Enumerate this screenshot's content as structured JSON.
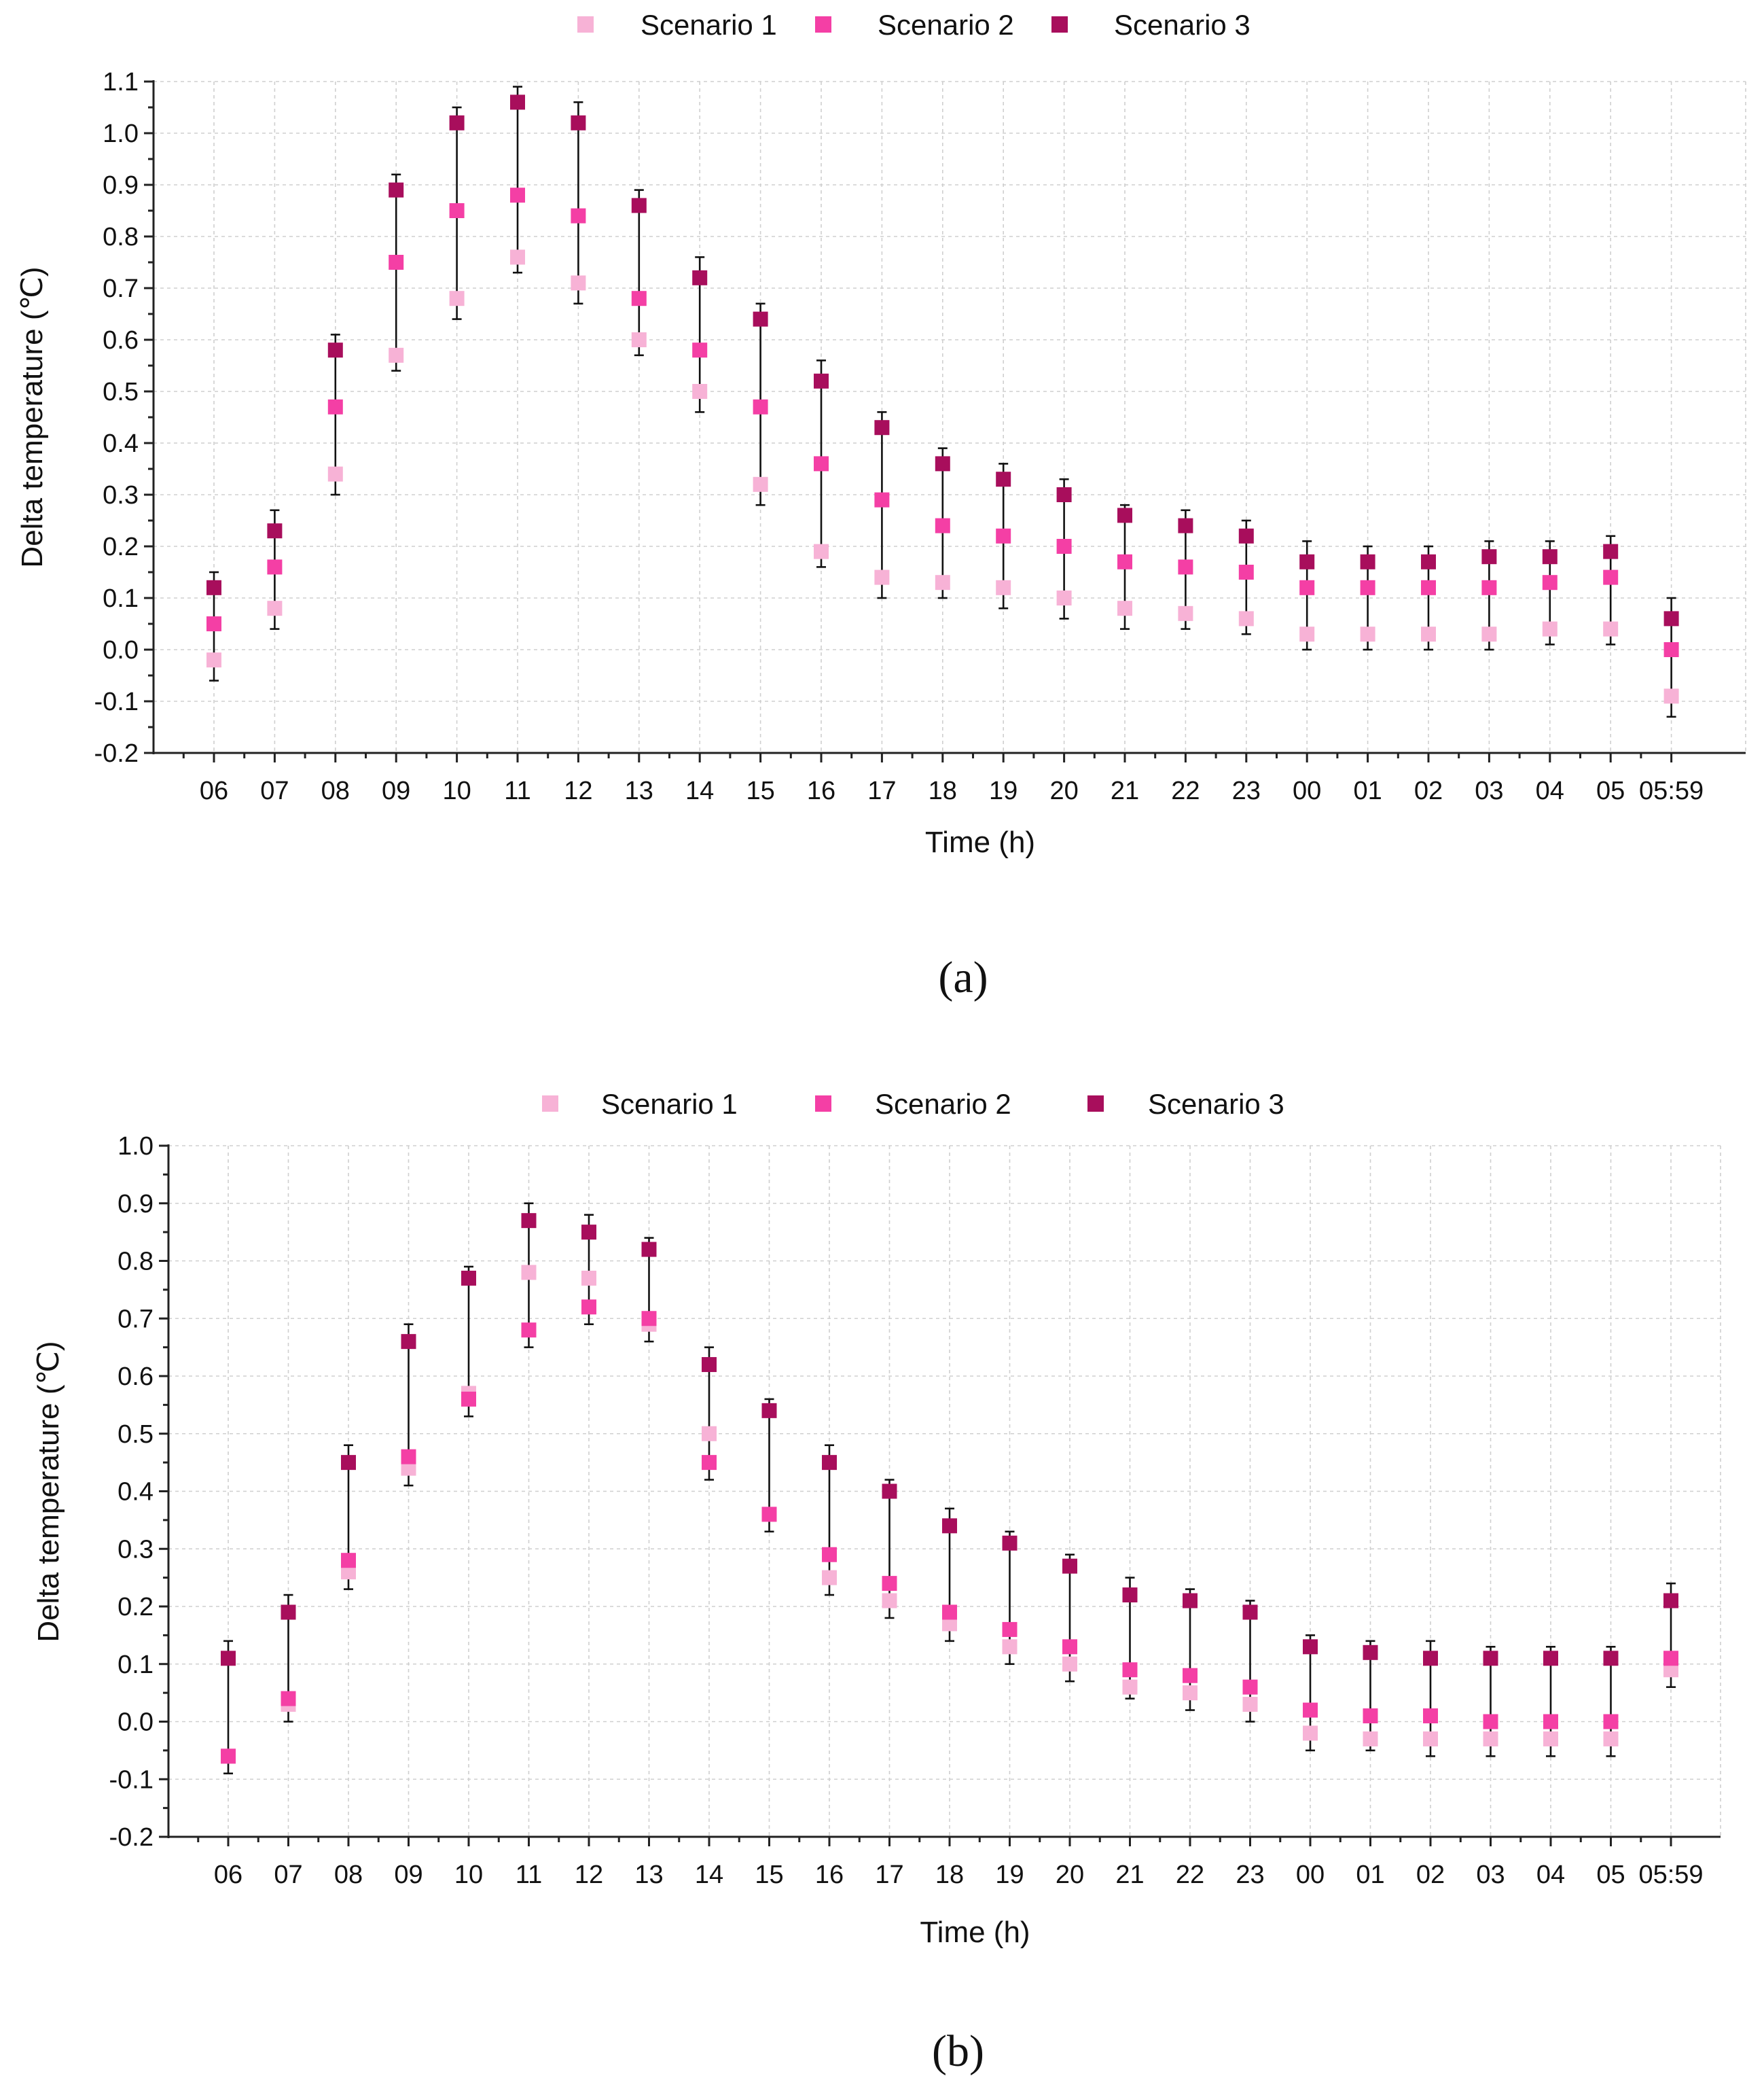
{
  "colors": {
    "Scenario 1": "#f7b2d6",
    "Scenario 2": "#f43fa5",
    "Scenario 3": "#a80e5c"
  },
  "chart_data": [
    {
      "type": "scatter",
      "caption": "(a)",
      "xlabel": "Time (h)",
      "ylabel": "Delta temperature (℃)",
      "ylim": [
        -0.2,
        1.1
      ],
      "yticks": [
        "-0.2",
        "-0.1",
        "0.0",
        "0.1",
        "0.2",
        "0.3",
        "0.4",
        "0.5",
        "0.6",
        "0.7",
        "0.8",
        "0.9",
        "1.0",
        "1.1"
      ],
      "categories": [
        "06",
        "07",
        "08",
        "09",
        "10",
        "11",
        "12",
        "13",
        "14",
        "15",
        "16",
        "17",
        "18",
        "19",
        "20",
        "21",
        "22",
        "23",
        "00",
        "01",
        "02",
        "03",
        "04",
        "05",
        "05:59"
      ],
      "legend": "top",
      "error_bars": true,
      "series": [
        {
          "name": "Scenario 1",
          "values": [
            -0.02,
            0.08,
            0.34,
            0.57,
            0.68,
            0.76,
            0.71,
            0.6,
            0.5,
            0.32,
            0.19,
            0.14,
            0.13,
            0.12,
            0.1,
            0.08,
            0.07,
            0.06,
            0.03,
            0.03,
            0.03,
            0.03,
            0.04,
            0.04,
            -0.09
          ]
        },
        {
          "name": "Scenario 2",
          "values": [
            0.05,
            0.16,
            0.47,
            0.75,
            0.85,
            0.88,
            0.84,
            0.68,
            0.58,
            0.47,
            0.36,
            0.29,
            0.24,
            0.22,
            0.2,
            0.17,
            0.16,
            0.15,
            0.12,
            0.12,
            0.12,
            0.12,
            0.13,
            0.14,
            0.0
          ]
        },
        {
          "name": "Scenario 3",
          "values": [
            0.12,
            0.23,
            0.58,
            0.89,
            1.02,
            1.06,
            1.02,
            0.86,
            0.72,
            0.64,
            0.52,
            0.43,
            0.36,
            0.33,
            0.3,
            0.26,
            0.24,
            0.22,
            0.17,
            0.17,
            0.17,
            0.18,
            0.18,
            0.19,
            0.06
          ]
        }
      ],
      "error_low": [
        -0.06,
        0.04,
        0.3,
        0.54,
        0.64,
        0.73,
        0.67,
        0.57,
        0.46,
        0.28,
        0.16,
        0.1,
        0.1,
        0.08,
        0.06,
        0.04,
        0.04,
        0.03,
        0.0,
        0.0,
        0.0,
        0.0,
        0.01,
        0.01,
        -0.13
      ],
      "error_high": [
        0.15,
        0.27,
        0.61,
        0.92,
        1.05,
        1.09,
        1.06,
        0.89,
        0.76,
        0.67,
        0.56,
        0.46,
        0.39,
        0.36,
        0.33,
        0.28,
        0.27,
        0.25,
        0.21,
        0.2,
        0.2,
        0.21,
        0.21,
        0.22,
        0.1
      ]
    },
    {
      "type": "scatter",
      "caption": "(b)",
      "xlabel": "Time (h)",
      "ylabel": "Delta temperature (℃)",
      "ylim": [
        -0.2,
        1.0
      ],
      "yticks": [
        "-0.2",
        "-0.1",
        "0.0",
        "0.1",
        "0.2",
        "0.3",
        "0.4",
        "0.5",
        "0.6",
        "0.7",
        "0.8",
        "0.9",
        "1.0"
      ],
      "categories": [
        "06",
        "07",
        "08",
        "09",
        "10",
        "11",
        "12",
        "13",
        "14",
        "15",
        "16",
        "17",
        "18",
        "19",
        "20",
        "21",
        "22",
        "23",
        "00",
        "01",
        "02",
        "03",
        "04",
        "05",
        "05:59"
      ],
      "legend": "top",
      "error_bars": true,
      "series": [
        {
          "name": "Scenario 1",
          "values": [
            -0.06,
            0.03,
            0.26,
            0.44,
            0.57,
            0.78,
            0.77,
            0.69,
            0.5,
            0.36,
            0.25,
            0.21,
            0.17,
            0.13,
            0.1,
            0.06,
            0.05,
            0.03,
            -0.02,
            -0.03,
            -0.03,
            -0.03,
            -0.03,
            -0.03,
            0.09
          ]
        },
        {
          "name": "Scenario 2",
          "values": [
            -0.06,
            0.04,
            0.28,
            0.46,
            0.56,
            0.68,
            0.72,
            0.7,
            0.45,
            0.36,
            0.29,
            0.24,
            0.19,
            0.16,
            0.13,
            0.09,
            0.08,
            0.06,
            0.02,
            0.01,
            0.01,
            0.0,
            0.0,
            0.0,
            0.11
          ]
        },
        {
          "name": "Scenario 3",
          "values": [
            0.11,
            0.19,
            0.45,
            0.66,
            0.77,
            0.87,
            0.85,
            0.82,
            0.62,
            0.54,
            0.45,
            0.4,
            0.34,
            0.31,
            0.27,
            0.22,
            0.21,
            0.19,
            0.13,
            0.12,
            0.11,
            0.11,
            0.11,
            0.11,
            0.21
          ]
        }
      ],
      "error_low": [
        -0.09,
        0.0,
        0.23,
        0.41,
        0.53,
        0.65,
        0.69,
        0.66,
        0.42,
        0.33,
        0.22,
        0.18,
        0.14,
        0.1,
        0.07,
        0.04,
        0.02,
        0.0,
        -0.05,
        -0.05,
        -0.06,
        -0.06,
        -0.06,
        -0.06,
        0.06
      ],
      "error_high": [
        0.14,
        0.22,
        0.48,
        0.69,
        0.79,
        0.9,
        0.88,
        0.84,
        0.65,
        0.56,
        0.48,
        0.42,
        0.37,
        0.33,
        0.29,
        0.25,
        0.23,
        0.21,
        0.15,
        0.14,
        0.14,
        0.13,
        0.13,
        0.13,
        0.24
      ]
    }
  ]
}
